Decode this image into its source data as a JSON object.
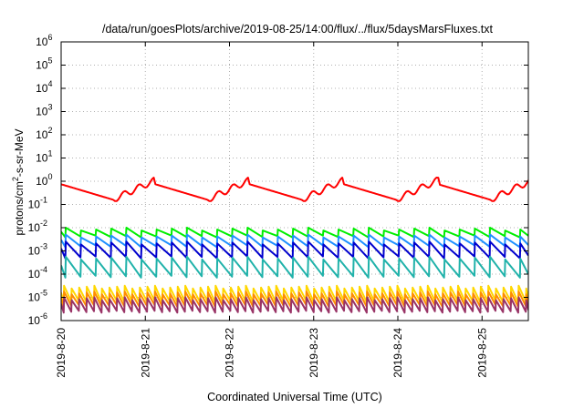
{
  "chart_data": {
    "type": "line",
    "title": "/data/run/goesPlots/archive/2019-08-25/14:00/flux/../flux/5daysMarsFluxes.txt",
    "xlabel": "Coordinated Universal Time (UTC)",
    "ylabel": {
      "prefix": "protons/cm",
      "superscript": "2",
      "suffix": "-s-sr-MeV"
    },
    "y_scale": "log",
    "ylim_exponents": [
      -6,
      6
    ],
    "y_tick_base": "10",
    "y_tick_exponents": [
      "-6",
      "-5",
      "-4",
      "-3",
      "-2",
      "-1",
      "0",
      "1",
      "2",
      "3",
      "4",
      "5",
      "6"
    ],
    "x_ticks": [
      "2019-8-20",
      "2019-8-21",
      "2019-8-22",
      "2019-8-23",
      "2019-8-24",
      "2019-8-25"
    ],
    "grid": true,
    "x_tick_values_days": [
      0,
      1,
      2,
      3,
      4,
      5
    ],
    "xlim_days": [
      0,
      5.55
    ],
    "series": [
      {
        "color": "#ff0000",
        "shape": "slow",
        "base_log": -0.35,
        "amp": 0.55,
        "period": 1.12,
        "x0": 0.0
      },
      {
        "color": "#00ee00",
        "shape": "saw",
        "base_log": -2.35,
        "amp": 0.35,
        "period": 0.18,
        "x0": 0.05
      },
      {
        "color": "#1e90ff",
        "shape": "saw",
        "base_log": -2.75,
        "amp": 0.45,
        "period": 0.18,
        "x0": 0.05
      },
      {
        "color": "#0000cd",
        "shape": "saw",
        "base_log": -3.2,
        "amp": 0.6,
        "period": 0.18,
        "x0": 0.05
      },
      {
        "color": "#20b2aa",
        "shape": "saw",
        "base_log": -4.0,
        "amp": 0.75,
        "period": 0.18,
        "x0": 0.05
      },
      {
        "color": "#ffd700",
        "shape": "saw",
        "base_log": -5.1,
        "amp": 0.6,
        "period": 0.09,
        "x0": 0.03
      },
      {
        "color": "#ff8c00",
        "shape": "saw",
        "base_log": -5.3,
        "amp": 0.55,
        "period": 0.09,
        "x0": 0.03
      },
      {
        "color": "#993366",
        "shape": "saw",
        "base_log": -5.55,
        "amp": 0.55,
        "period": 0.09,
        "x0": 0.03
      }
    ]
  }
}
